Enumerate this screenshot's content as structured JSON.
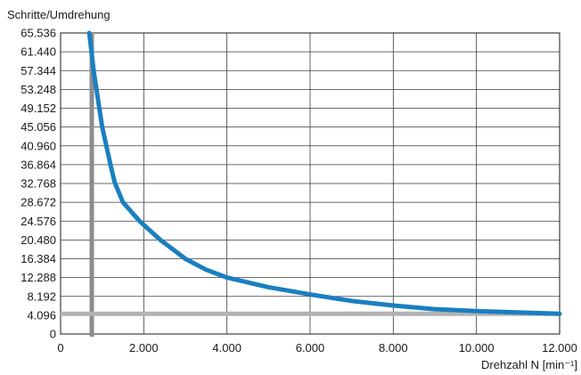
{
  "chart_data": {
    "type": "line",
    "ylabel": "Schritte/Umdrehung",
    "xlabel": "Drehzahl N [min⁻¹]",
    "xlim": [
      0,
      12000
    ],
    "ylim": [
      0,
      65536
    ],
    "x_ticks": [
      0,
      2000,
      4000,
      6000,
      8000,
      10000,
      12000
    ],
    "x_tick_labels": [
      "0",
      "2.000",
      "4.000",
      "6.000",
      "8.000",
      "10.000",
      "12.000"
    ],
    "y_ticks": [
      0,
      4096,
      8192,
      12288,
      16384,
      20480,
      24576,
      28672,
      32768,
      36864,
      40960,
      45056,
      49152,
      53248,
      57344,
      61440,
      65536
    ],
    "y_tick_labels": [
      "0",
      "4.096",
      "8.192",
      "12.288",
      "16.384",
      "20.480",
      "24.576",
      "28.672",
      "32.768",
      "36.864",
      "40.960",
      "45.056",
      "49.152",
      "53.248",
      "57.344",
      "61.440",
      "65.536"
    ],
    "grid": true,
    "series": [
      {
        "color": "#1a7fc1",
        "x": [
          690,
          800,
          1000,
          1200,
          1300,
          1500,
          1900,
          2400,
          3000,
          3500,
          4000,
          5000,
          6000,
          7000,
          8000,
          9000,
          10000,
          11000,
          12000
        ],
        "y": [
          65536,
          57000,
          45056,
          36864,
          33000,
          28672,
          24576,
          20480,
          16384,
          14000,
          12288,
          10200,
          8600,
          7200,
          6200,
          5400,
          5000,
          4700,
          4400
        ]
      }
    ],
    "reference_lines": [
      {
        "orientation": "vertical",
        "value": 750,
        "color": "#8c8c8c"
      },
      {
        "orientation": "horizontal",
        "value": 4400,
        "color": "#b3b3b3"
      }
    ]
  }
}
